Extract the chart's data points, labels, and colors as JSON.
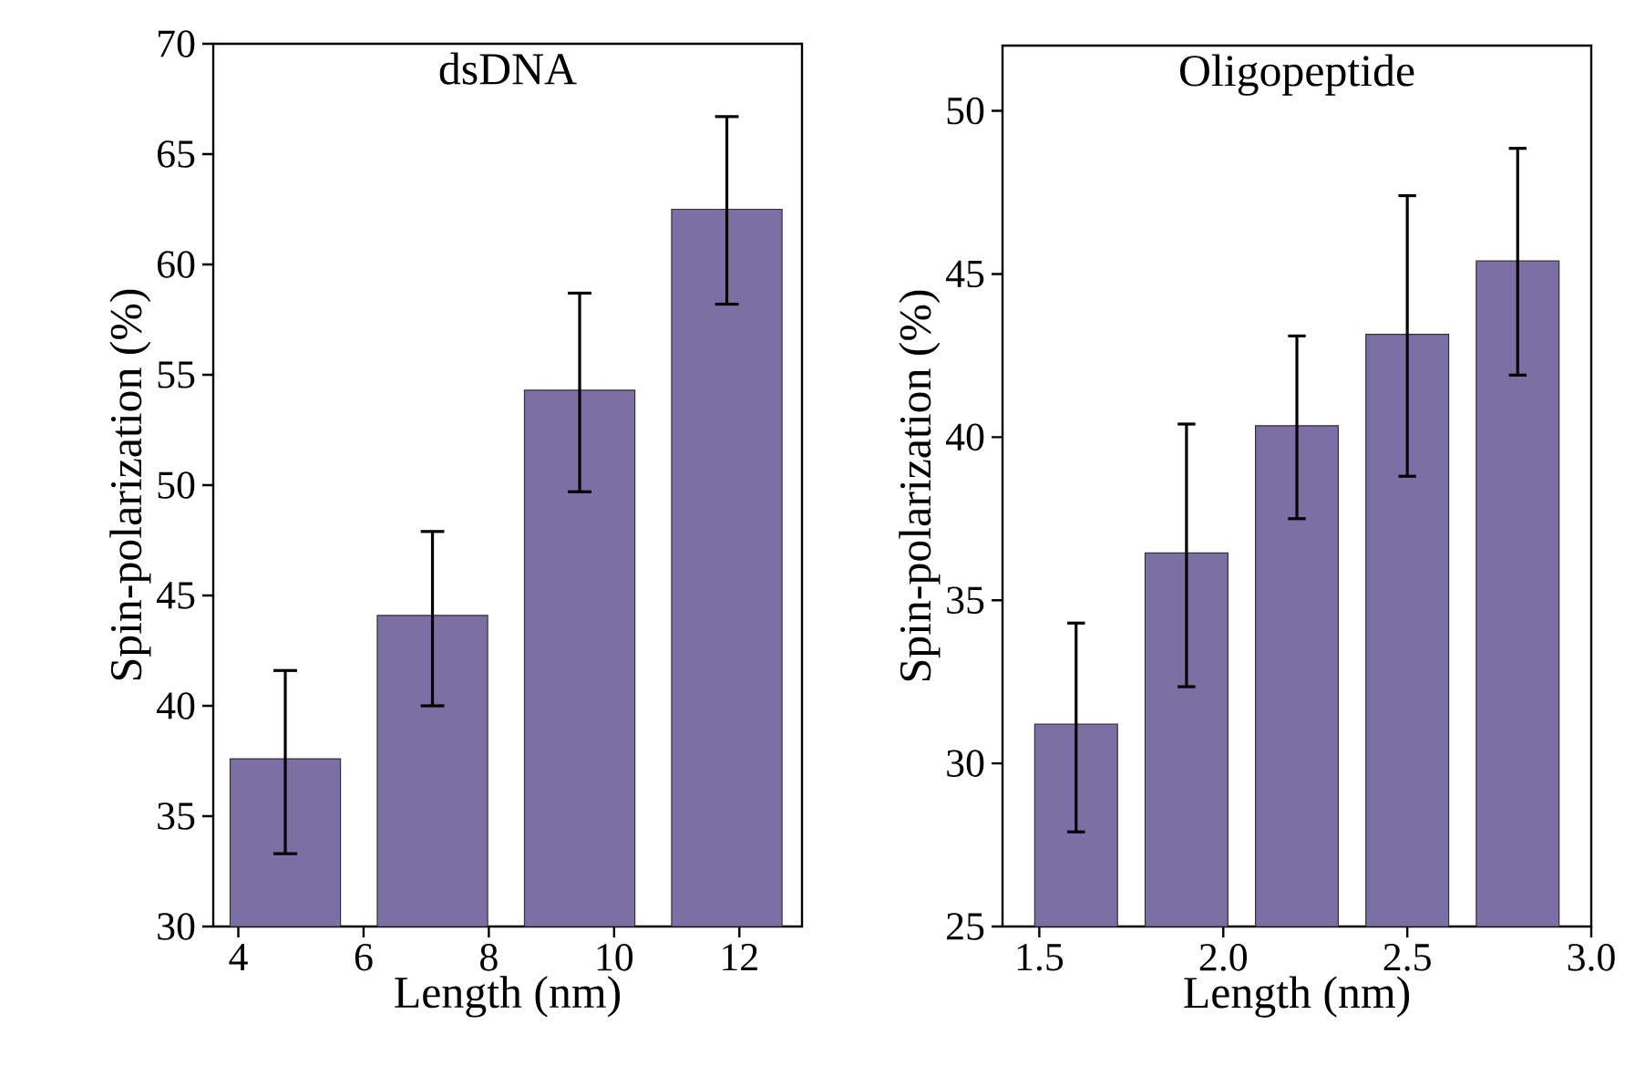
{
  "chart_data": [
    {
      "type": "bar",
      "title": "dsDNA",
      "xlabel": "Length (nm)",
      "ylabel": "Spin-polarization (%)",
      "x": [
        4.75,
        7.1,
        9.45,
        11.8
      ],
      "values": [
        37.6,
        44.1,
        54.3,
        62.5
      ],
      "color": "#7b6fa6",
      "errors": [
        [
          33.3,
          41.6
        ],
        [
          40.0,
          47.9
        ],
        [
          49.7,
          58.7
        ],
        [
          58.2,
          66.7
        ]
      ],
      "xlim": [
        3.6,
        13
      ],
      "ylim": [
        30,
        70
      ],
      "xticks": [
        4,
        6,
        8,
        10,
        12
      ],
      "yticks": [
        30,
        35,
        40,
        45,
        50,
        55,
        60,
        65,
        70
      ],
      "grid": false
    },
    {
      "type": "bar",
      "title": "Oligopeptide",
      "xlabel": "Length (nm)",
      "ylabel": "Spin-polarization (%)",
      "x": [
        1.6,
        1.9,
        2.2,
        2.5,
        2.8
      ],
      "values": [
        31.2,
        36.45,
        40.35,
        43.15,
        45.4
      ],
      "color": "#7b6fa6",
      "errors": [
        [
          27.9,
          34.3
        ],
        [
          32.35,
          40.4
        ],
        [
          37.5,
          43.1
        ],
        [
          38.8,
          47.4
        ],
        [
          41.9,
          48.85
        ]
      ],
      "xlim": [
        1.4,
        3.0
      ],
      "ylim": [
        25,
        52
      ],
      "xticks": [
        {
          "value": 1.5,
          "label": "1.5"
        },
        {
          "value": 2.0,
          "label": "2.0"
        },
        {
          "value": 2.5,
          "label": "2.5"
        },
        {
          "value": 3.0,
          "label": "3.0"
        }
      ],
      "yticks": [
        25,
        30,
        35,
        40,
        45,
        50
      ],
      "grid": false
    }
  ]
}
